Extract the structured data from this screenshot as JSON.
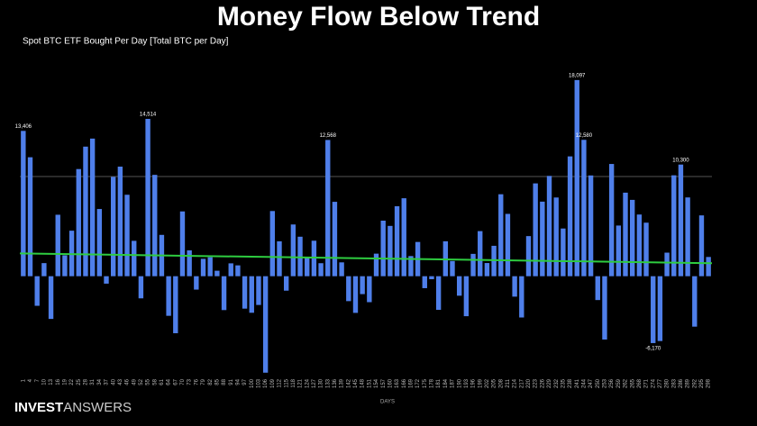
{
  "chart_data": {
    "type": "bar",
    "title": "Money Flow Below Trend",
    "subtitle": "Spot BTC ETF Bought Per Day [Total BTC per Day]",
    "xlabel": "DAYS",
    "color": "#4f7fea",
    "categories": [
      "1",
      "4",
      "7",
      "10",
      "13",
      "16",
      "19",
      "22",
      "25",
      "28",
      "31",
      "34",
      "37",
      "40",
      "43",
      "46",
      "49",
      "52",
      "55",
      "58",
      "61",
      "64",
      "67",
      "70",
      "73",
      "76",
      "79",
      "82",
      "85",
      "88",
      "91",
      "94",
      "97",
      "100",
      "103",
      "106",
      "109",
      "112",
      "115",
      "118",
      "121",
      "124",
      "127",
      "130",
      "133",
      "136",
      "139",
      "142",
      "145",
      "148",
      "151",
      "154",
      "157",
      "160",
      "163",
      "166",
      "169",
      "172",
      "175",
      "178",
      "181",
      "184",
      "187",
      "190",
      "193",
      "196",
      "199",
      "202",
      "205",
      "208",
      "211",
      "214",
      "217",
      "220",
      "223",
      "226",
      "229",
      "232",
      "235",
      "238",
      "241",
      "244",
      "247",
      "250",
      "253",
      "256",
      "259",
      "262",
      "265",
      "268",
      "271",
      "274",
      "277",
      "280",
      "283",
      "286",
      "289",
      "292",
      "295",
      "298"
    ],
    "values": [
      13406,
      10974,
      -2731,
      1208,
      -3942,
      5670,
      1926,
      4200,
      9886,
      11954,
      12696,
      6200,
      -687,
      9161,
      10109,
      7514,
      3264,
      -2042,
      14514,
      9349,
      3813,
      -3654,
      -5260,
      5976,
      2384,
      -1236,
      1604,
      1750,
      504,
      -3125,
      1186,
      1000,
      -2991,
      -3374,
      -2654,
      -8900,
      6013,
      3220,
      -1333,
      4772,
      3644,
      1800,
      3275,
      1200,
      12568,
      6863,
      1277,
      -2300,
      -3384,
      -1653,
      -2396,
      2081,
      5125,
      4641,
      6453,
      7192,
      1859,
      3160,
      -1103,
      -277,
      -3105,
      3222,
      1400,
      -1800,
      -3690,
      2061,
      4160,
      1217,
      2804,
      7561,
      5750,
      -1886,
      -3808,
      3700,
      8563,
      6879,
      9254,
      7261,
      4400,
      11054,
      18097,
      12580,
      9296,
      -2200,
      -5842,
      10354,
      4674,
      7707,
      7042,
      5691,
      4938,
      -6170,
      -5981,
      2173,
      9309,
      10300,
      7267,
      -4653,
      5610,
      1774
    ],
    "value_labels": [
      "13,406",
      null,
      null,
      null,
      null,
      null,
      null,
      null,
      null,
      null,
      null,
      null,
      null,
      null,
      null,
      null,
      null,
      null,
      "14,514",
      null,
      null,
      null,
      null,
      null,
      null,
      null,
      null,
      null,
      null,
      null,
      null,
      null,
      null,
      null,
      null,
      null,
      null,
      null,
      null,
      null,
      null,
      null,
      null,
      null,
      "12,568",
      null,
      null,
      null,
      null,
      null,
      null,
      null,
      null,
      null,
      null,
      null,
      null,
      null,
      null,
      null,
      null,
      null,
      null,
      null,
      null,
      null,
      null,
      null,
      null,
      null,
      null,
      null,
      null,
      null,
      null,
      null,
      null,
      null,
      null,
      null,
      "18,097",
      "12,580",
      null,
      null,
      null,
      null,
      null,
      null,
      null,
      null,
      null,
      "-6,170",
      null,
      null,
      null,
      "10,300",
      null,
      null,
      null,
      null
    ],
    "ylim": [
      -9000,
      19000
    ],
    "reference_line": 9200,
    "reference_color": "#555555",
    "trend": [
      2100,
      1200
    ],
    "trend_color": "#2ecc40"
  },
  "footer": {
    "brand_bold": "INVEST",
    "brand_light": "ANSWERS"
  }
}
